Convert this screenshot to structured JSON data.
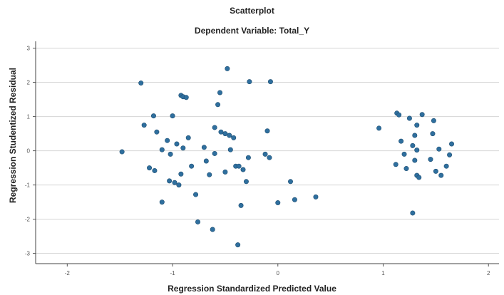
{
  "chart_data": {
    "type": "scatter",
    "title": "Scatterplot",
    "subtitle": "Dependent Variable: Total_Y",
    "xlabel": "Regression Standardized Predicted Value",
    "ylabel": "Regression Studentized Residual",
    "xlim": [
      -2.3,
      2.1
    ],
    "ylim": [
      -3.3,
      3.2
    ],
    "xticks": [
      -2,
      -1,
      0,
      1,
      2
    ],
    "yticks": [
      -3,
      -2,
      -1,
      0,
      1,
      2,
      3
    ],
    "grid": "horizontal",
    "point_color": "#2f6f9e",
    "points": [
      {
        "x": -1.48,
        "y": -0.03
      },
      {
        "x": -1.3,
        "y": 1.98
      },
      {
        "x": -1.27,
        "y": 0.75
      },
      {
        "x": -1.22,
        "y": -0.5
      },
      {
        "x": -1.18,
        "y": 1.02
      },
      {
        "x": -1.17,
        "y": -0.58
      },
      {
        "x": -1.15,
        "y": 0.55
      },
      {
        "x": -1.1,
        "y": 0.03
      },
      {
        "x": -1.1,
        "y": -1.5
      },
      {
        "x": -1.05,
        "y": 0.3
      },
      {
        "x": -1.03,
        "y": -0.88
      },
      {
        "x": -1.02,
        "y": -0.1
      },
      {
        "x": -1.0,
        "y": 1.02
      },
      {
        "x": -0.98,
        "y": -0.93
      },
      {
        "x": -0.96,
        "y": 0.2
      },
      {
        "x": -0.94,
        "y": -1.0
      },
      {
        "x": -0.92,
        "y": 1.62
      },
      {
        "x": -0.9,
        "y": 1.58
      },
      {
        "x": -0.92,
        "y": -0.68
      },
      {
        "x": -0.9,
        "y": 0.08
      },
      {
        "x": -0.87,
        "y": 1.56
      },
      {
        "x": -0.85,
        "y": 0.38
      },
      {
        "x": -0.82,
        "y": -0.45
      },
      {
        "x": -0.78,
        "y": -1.28
      },
      {
        "x": -0.76,
        "y": -2.08
      },
      {
        "x": -0.7,
        "y": 0.1
      },
      {
        "x": -0.68,
        "y": -0.3
      },
      {
        "x": -0.65,
        "y": -0.7
      },
      {
        "x": -0.62,
        "y": -2.3
      },
      {
        "x": -0.6,
        "y": 0.68
      },
      {
        "x": -0.6,
        "y": -0.08
      },
      {
        "x": -0.57,
        "y": 1.35
      },
      {
        "x": -0.55,
        "y": 1.7
      },
      {
        "x": -0.54,
        "y": 0.55
      },
      {
        "x": -0.5,
        "y": 0.5
      },
      {
        "x": -0.5,
        "y": -0.62
      },
      {
        "x": -0.48,
        "y": 2.4
      },
      {
        "x": -0.46,
        "y": 0.45
      },
      {
        "x": -0.45,
        "y": 0.03
      },
      {
        "x": -0.42,
        "y": 0.38
      },
      {
        "x": -0.4,
        "y": -0.45
      },
      {
        "x": -0.38,
        "y": -2.75
      },
      {
        "x": -0.37,
        "y": -0.45
      },
      {
        "x": -0.35,
        "y": -1.6
      },
      {
        "x": -0.33,
        "y": -0.55
      },
      {
        "x": -0.3,
        "y": -0.9
      },
      {
        "x": -0.28,
        "y": -0.2
      },
      {
        "x": -0.27,
        "y": 2.02
      },
      {
        "x": -0.12,
        "y": -0.1
      },
      {
        "x": -0.1,
        "y": 0.58
      },
      {
        "x": -0.08,
        "y": -0.2
      },
      {
        "x": -0.07,
        "y": 2.02
      },
      {
        "x": 0.0,
        "y": -1.52
      },
      {
        "x": 0.12,
        "y": -0.9
      },
      {
        "x": 0.16,
        "y": -1.43
      },
      {
        "x": 0.36,
        "y": -1.35
      },
      {
        "x": 0.96,
        "y": 0.66
      },
      {
        "x": 1.12,
        "y": -0.4
      },
      {
        "x": 1.13,
        "y": 1.1
      },
      {
        "x": 1.15,
        "y": 1.05
      },
      {
        "x": 1.17,
        "y": 0.28
      },
      {
        "x": 1.2,
        "y": -0.1
      },
      {
        "x": 1.22,
        "y": -0.52
      },
      {
        "x": 1.25,
        "y": 0.95
      },
      {
        "x": 1.28,
        "y": 0.15
      },
      {
        "x": 1.28,
        "y": -1.82
      },
      {
        "x": 1.3,
        "y": -0.28
      },
      {
        "x": 1.3,
        "y": 0.45
      },
      {
        "x": 1.32,
        "y": 0.75
      },
      {
        "x": 1.32,
        "y": -0.72
      },
      {
        "x": 1.34,
        "y": -0.78
      },
      {
        "x": 1.32,
        "y": 0.02
      },
      {
        "x": 1.37,
        "y": 1.06
      },
      {
        "x": 1.45,
        "y": -0.25
      },
      {
        "x": 1.47,
        "y": 0.5
      },
      {
        "x": 1.48,
        "y": 0.88
      },
      {
        "x": 1.5,
        "y": -0.6
      },
      {
        "x": 1.53,
        "y": 0.05
      },
      {
        "x": 1.55,
        "y": -0.72
      },
      {
        "x": 1.6,
        "y": -0.45
      },
      {
        "x": 1.63,
        "y": -0.12
      },
      {
        "x": 1.65,
        "y": 0.2
      }
    ]
  }
}
